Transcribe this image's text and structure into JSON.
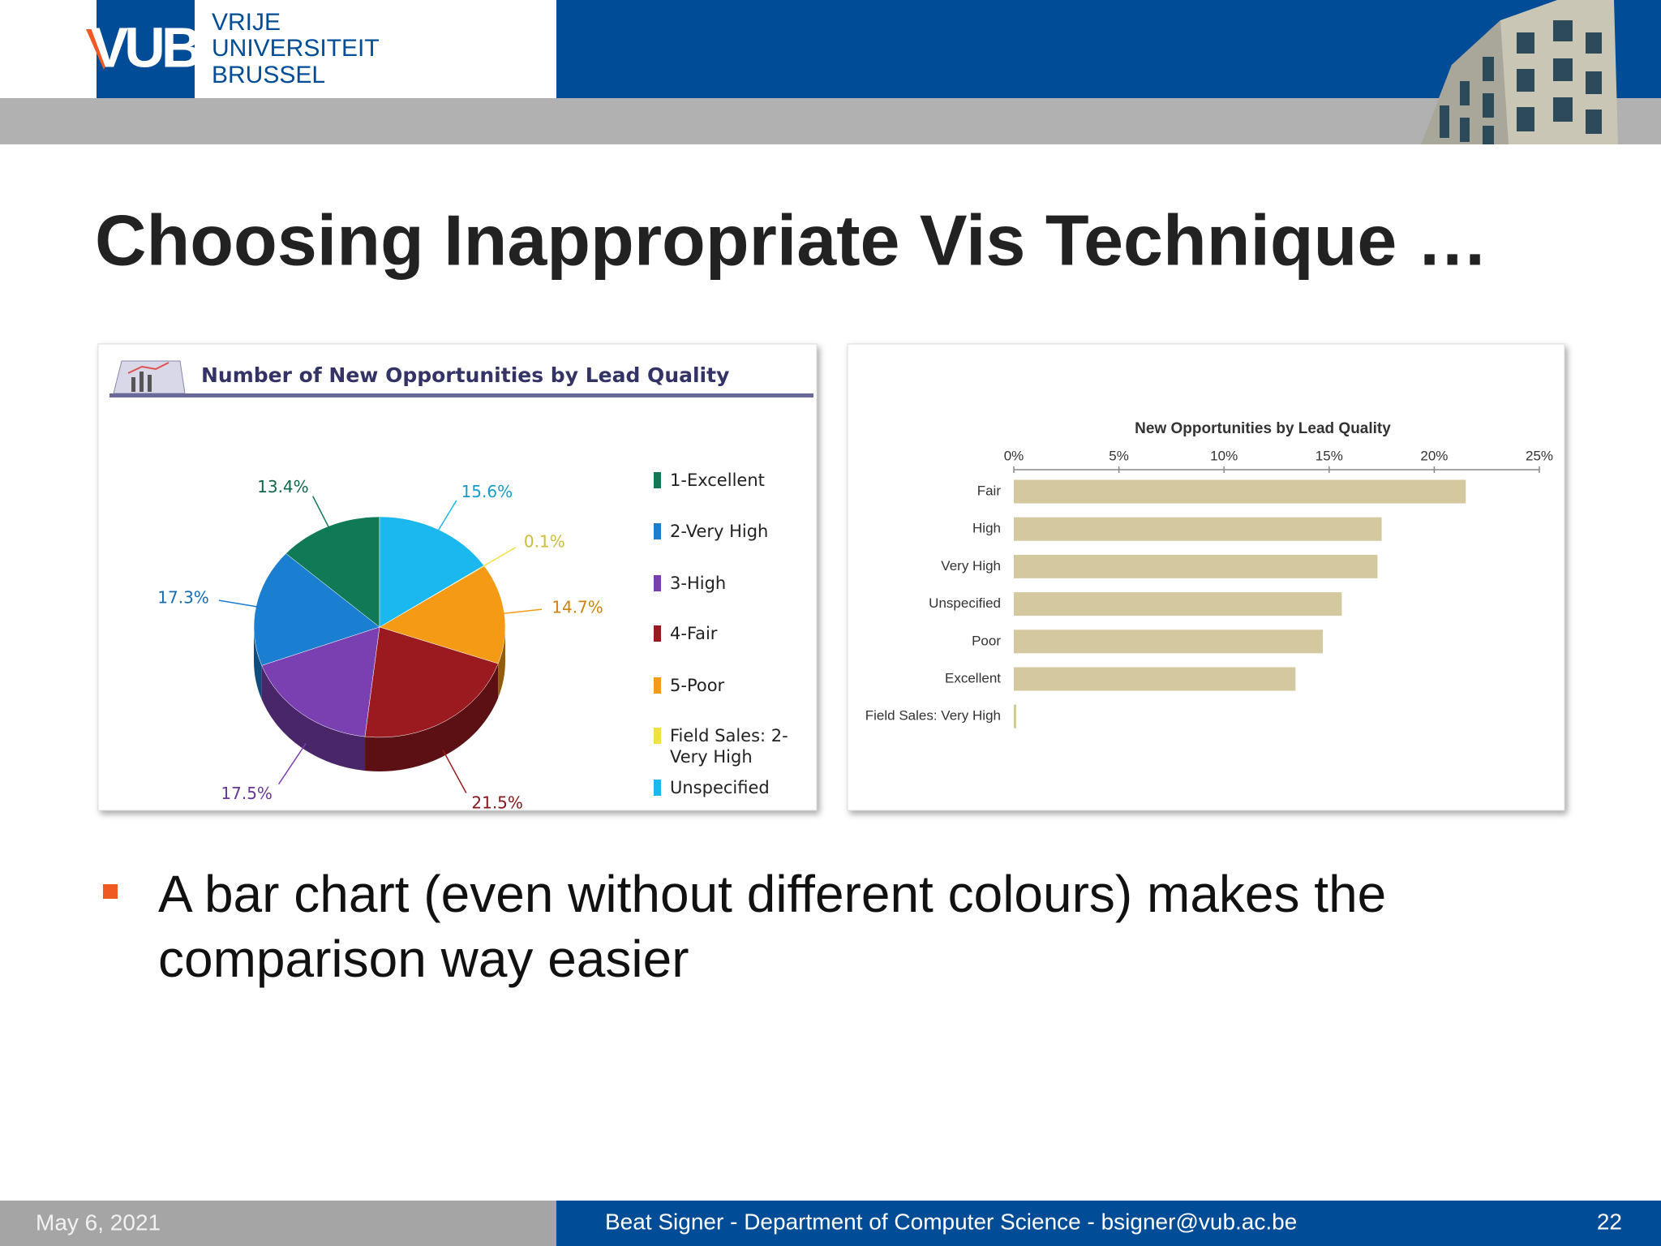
{
  "header": {
    "logo": "VUB",
    "name_lines": [
      "VRIJE",
      "UNIVERSITEIT",
      "BRUSSEL"
    ]
  },
  "title": "Choosing Inappropriate Vis Technique …",
  "chart_data": [
    {
      "type": "pie",
      "title": "Number of New Opportunities by Lead Quality",
      "categories": [
        "1-Excellent",
        "2-Very High",
        "3-High",
        "4-Fair",
        "5-Poor",
        "Field Sales: 2-Very High",
        "Unspecified"
      ],
      "values": [
        13.4,
        17.3,
        17.5,
        21.5,
        14.7,
        0.1,
        15.6
      ],
      "value_labels": [
        "13.4%",
        "17.3%",
        "17.5%",
        "21.5%",
        "14.7%",
        "0.1%",
        "15.6%"
      ],
      "colors": [
        "#0f7a55",
        "#1a7fd0",
        "#7a3fb0",
        "#9a1a1f",
        "#f59a14",
        "#f0e040",
        "#1ab8ee"
      ]
    },
    {
      "type": "bar",
      "orientation": "horizontal",
      "title": "New Opportunities by Lead Quality",
      "categories": [
        "Fair",
        "High",
        "Very High",
        "Unspecified",
        "Poor",
        "Excellent",
        "Field Sales: Very High"
      ],
      "values": [
        21.5,
        17.5,
        17.3,
        15.6,
        14.7,
        13.4,
        0.1
      ],
      "color": "#d4c89f",
      "xlim": [
        0,
        25
      ],
      "xticks": [
        {
          "value": 0,
          "label": "0%"
        },
        {
          "value": 5,
          "label": "5%"
        },
        {
          "value": 10,
          "label": "10%"
        },
        {
          "value": 15,
          "label": "15%"
        },
        {
          "value": 20,
          "label": "20%"
        },
        {
          "value": 25,
          "label": "25%"
        }
      ]
    }
  ],
  "bullets": [
    "A bar chart (even without different colours) makes the comparison way easier"
  ],
  "footer": {
    "date": "May 6, 2021",
    "text": "Beat Signer - Department of Computer Science - bsigner@vub.ac.be",
    "page": "22"
  }
}
